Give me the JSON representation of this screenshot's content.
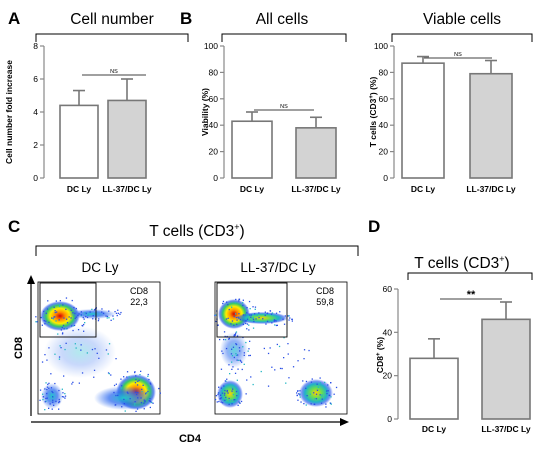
{
  "panels": {
    "a": {
      "letter": "A"
    },
    "b": {
      "letter": "B"
    },
    "c": {
      "letter": "C",
      "title": "T cells (CD3",
      "title_sup": "+",
      "title_end": ")",
      "x_axis": "CD4",
      "y_axis": "CD8"
    },
    "d": {
      "letter": "D"
    }
  },
  "colors": {
    "dc_bar": "#ffffff",
    "ll37_bar": "#d3d3d3",
    "edge": "#777777",
    "axis": "#888888"
  },
  "chart_data": [
    {
      "type": "bar",
      "id": "cell-number",
      "title": "Cell number",
      "ylabel": "Cell number fold increase",
      "categories": [
        "DC Ly",
        "LL-37/DC Ly"
      ],
      "values": [
        4.4,
        4.7
      ],
      "errors": [
        0.9,
        1.3
      ],
      "ylim": [
        0,
        8
      ],
      "yticks": [
        0,
        2,
        4,
        6,
        8
      ],
      "significance": "NS"
    },
    {
      "type": "bar",
      "id": "all-cells",
      "title": "All cells",
      "ylabel": "Viability (%)",
      "categories": [
        "DC Ly",
        "LL-37/DC Ly"
      ],
      "values": [
        43,
        38
      ],
      "errors": [
        7,
        8
      ],
      "ylim": [
        0,
        100
      ],
      "yticks": [
        0,
        20,
        40,
        60,
        80,
        100
      ],
      "significance": "NS"
    },
    {
      "type": "bar",
      "id": "viable-cells",
      "title": "Viable cells",
      "ylabel": "T cells (CD3",
      "ylabel_sup": "+",
      "ylabel_end": ") (%)",
      "categories": [
        "DC Ly",
        "LL-37/DC Ly"
      ],
      "values": [
        87,
        79
      ],
      "errors": [
        5,
        10
      ],
      "ylim": [
        0,
        100
      ],
      "yticks": [
        0,
        20,
        40,
        60,
        80,
        100
      ],
      "significance": "NS"
    },
    {
      "type": "scatter",
      "id": "flow-dc-ly",
      "title": "DC Ly",
      "xlabel": "CD4",
      "ylabel": "CD8",
      "gate_label": "CD8",
      "gate_value": "22,3"
    },
    {
      "type": "scatter",
      "id": "flow-ll37-dc-ly",
      "title": "LL-37/DC Ly",
      "xlabel": "CD4",
      "ylabel": "CD8",
      "gate_label": "CD8",
      "gate_value": "59,8"
    },
    {
      "type": "bar",
      "id": "cd8-percent",
      "title": "T cells (CD3",
      "title_sup": "+",
      "title_end": ")",
      "ylabel": "CD8",
      "ylabel_sup": "+",
      "ylabel_end": " (%)",
      "categories": [
        "DC Ly",
        "LL-37/DC Ly"
      ],
      "values": [
        28,
        46
      ],
      "errors": [
        9,
        8
      ],
      "ylim": [
        0,
        60
      ],
      "yticks": [
        0,
        20,
        40,
        60
      ],
      "significance": "**"
    }
  ]
}
